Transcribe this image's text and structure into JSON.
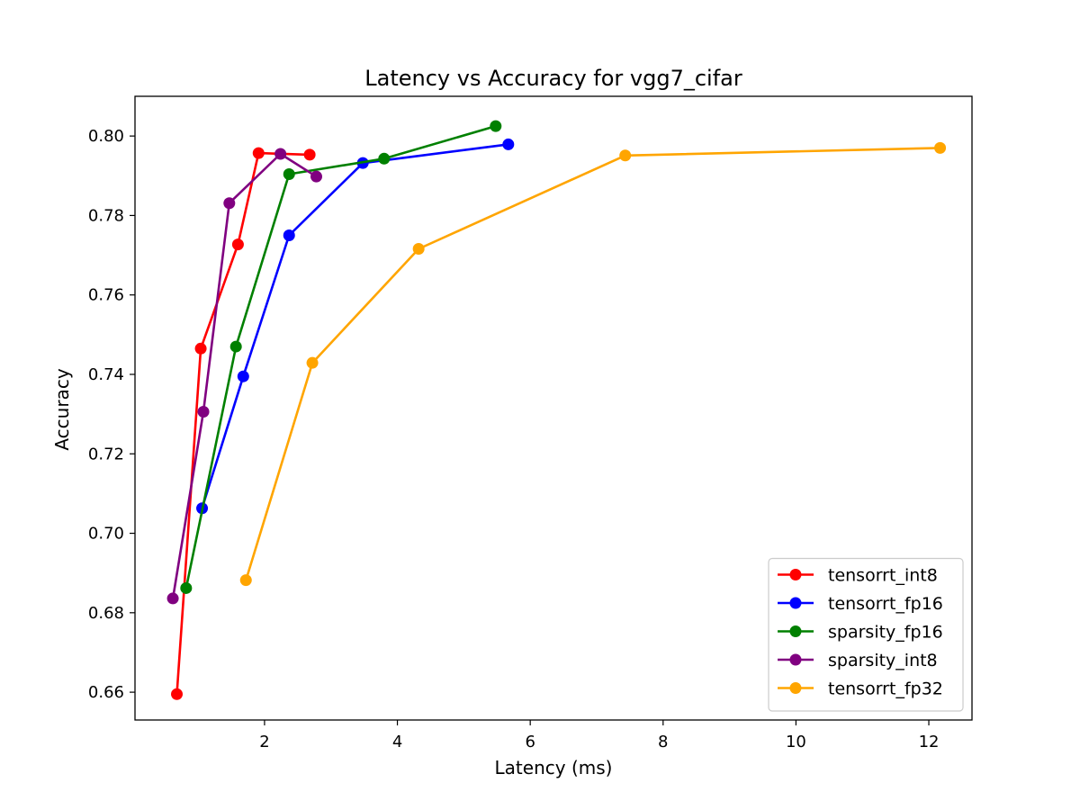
{
  "chart_data": {
    "type": "line",
    "title": "Latency vs Accuracy for vgg7_cifar",
    "xlabel": "Latency (ms)",
    "ylabel": "Accuracy",
    "xlim": [
      0.05,
      12.65
    ],
    "ylim": [
      0.653,
      0.81
    ],
    "xticks": [
      2,
      4,
      6,
      8,
      10,
      12
    ],
    "xtick_labels": [
      "2",
      "4",
      "6",
      "8",
      "10",
      "12"
    ],
    "yticks": [
      0.66,
      0.68,
      0.7,
      0.72,
      0.74,
      0.76,
      0.78,
      0.8
    ],
    "ytick_labels": [
      "0.66",
      "0.68",
      "0.70",
      "0.72",
      "0.74",
      "0.76",
      "0.78",
      "0.80"
    ],
    "grid": false,
    "legend_position": "bottom-right",
    "series": [
      {
        "name": "tensorrt_int8",
        "color": "#ff0000",
        "points": [
          [
            0.68,
            0.6595
          ],
          [
            1.04,
            0.7465
          ],
          [
            1.6,
            0.7727
          ],
          [
            1.91,
            0.7957
          ],
          [
            2.68,
            0.7953
          ]
        ]
      },
      {
        "name": "tensorrt_fp16",
        "color": "#0000ff",
        "points": [
          [
            1.06,
            0.7063
          ],
          [
            1.68,
            0.7395
          ],
          [
            2.37,
            0.775
          ],
          [
            3.48,
            0.7932
          ],
          [
            5.67,
            0.7979
          ]
        ]
      },
      {
        "name": "sparsity_fp16",
        "color": "#008000",
        "points": [
          [
            0.82,
            0.6862
          ],
          [
            1.57,
            0.747
          ],
          [
            2.37,
            0.7904
          ],
          [
            3.8,
            0.7943
          ],
          [
            5.48,
            0.8025
          ]
        ]
      },
      {
        "name": "sparsity_int8",
        "color": "#800080",
        "points": [
          [
            0.62,
            0.6836
          ],
          [
            1.08,
            0.7306
          ],
          [
            1.47,
            0.7831
          ],
          [
            2.24,
            0.7955
          ],
          [
            2.78,
            0.7898
          ]
        ]
      },
      {
        "name": "tensorrt_fp32",
        "color": "#ffa500",
        "points": [
          [
            1.72,
            0.6882
          ],
          [
            2.72,
            0.7429
          ],
          [
            4.32,
            0.7716
          ],
          [
            7.43,
            0.7951
          ],
          [
            12.17,
            0.797
          ]
        ]
      }
    ]
  }
}
